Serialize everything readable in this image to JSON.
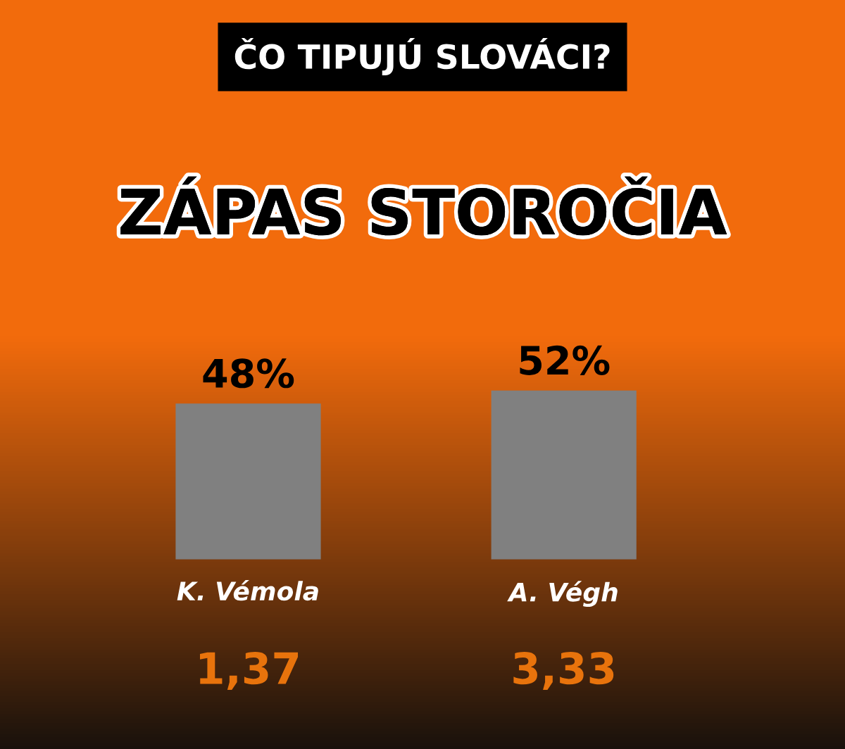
{
  "chart_data": {
    "type": "bar",
    "title": "ZÁPAS STOROČIA",
    "subtitle": "ČO TIPUJÚ SLOVÁCI?",
    "categories": [
      "K. Vémola",
      "A. Végh"
    ],
    "values": [
      48,
      52
    ],
    "value_labels": [
      "48%",
      "52%"
    ],
    "color": "#808080",
    "annotations": [
      "1,37",
      "3,33"
    ],
    "grid": false,
    "legend": false
  }
}
